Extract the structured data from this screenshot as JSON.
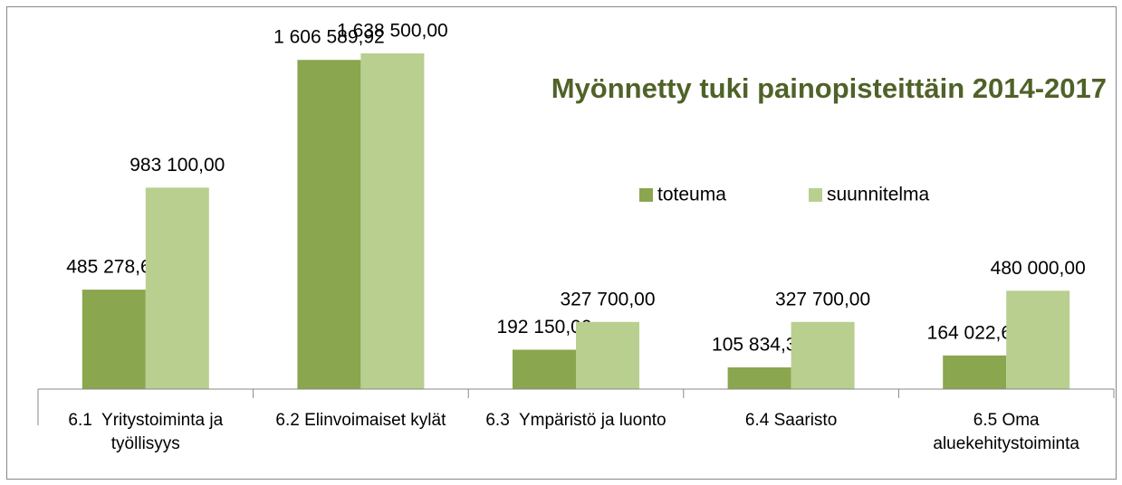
{
  "chart_data": {
    "type": "bar",
    "title": "Myönnetty tuki painopisteittäin 2014-2017",
    "categories": [
      "6.1  Yritystoiminta ja työllisyys",
      "6.2 Elinvoimaiset kylät",
      "6.3  Ympäristö ja luonto",
      "6.4 Saaristo",
      "6.5 Oma aluekehitystoiminta"
    ],
    "series": [
      {
        "name": "toteuma",
        "color": "#8aa64e",
        "values": [
          485278.66,
          1606589.92,
          192150.0,
          105834.32,
          164022.61
        ],
        "value_labels": [
          "485 278,66",
          "1 606 589,92",
          "192 150,00",
          "105 834,32",
          "164 022,61"
        ]
      },
      {
        "name": "suunnitelma",
        "color": "#b9cf8f",
        "values": [
          983100.0,
          1638500.0,
          327700.0,
          327700.0,
          480000.0
        ],
        "value_labels": [
          "983 100,00",
          "1 638 500,00",
          "327 700,00",
          "327 700,00",
          "480 000,00"
        ]
      }
    ],
    "ylim": [
      0,
      1800000
    ]
  }
}
